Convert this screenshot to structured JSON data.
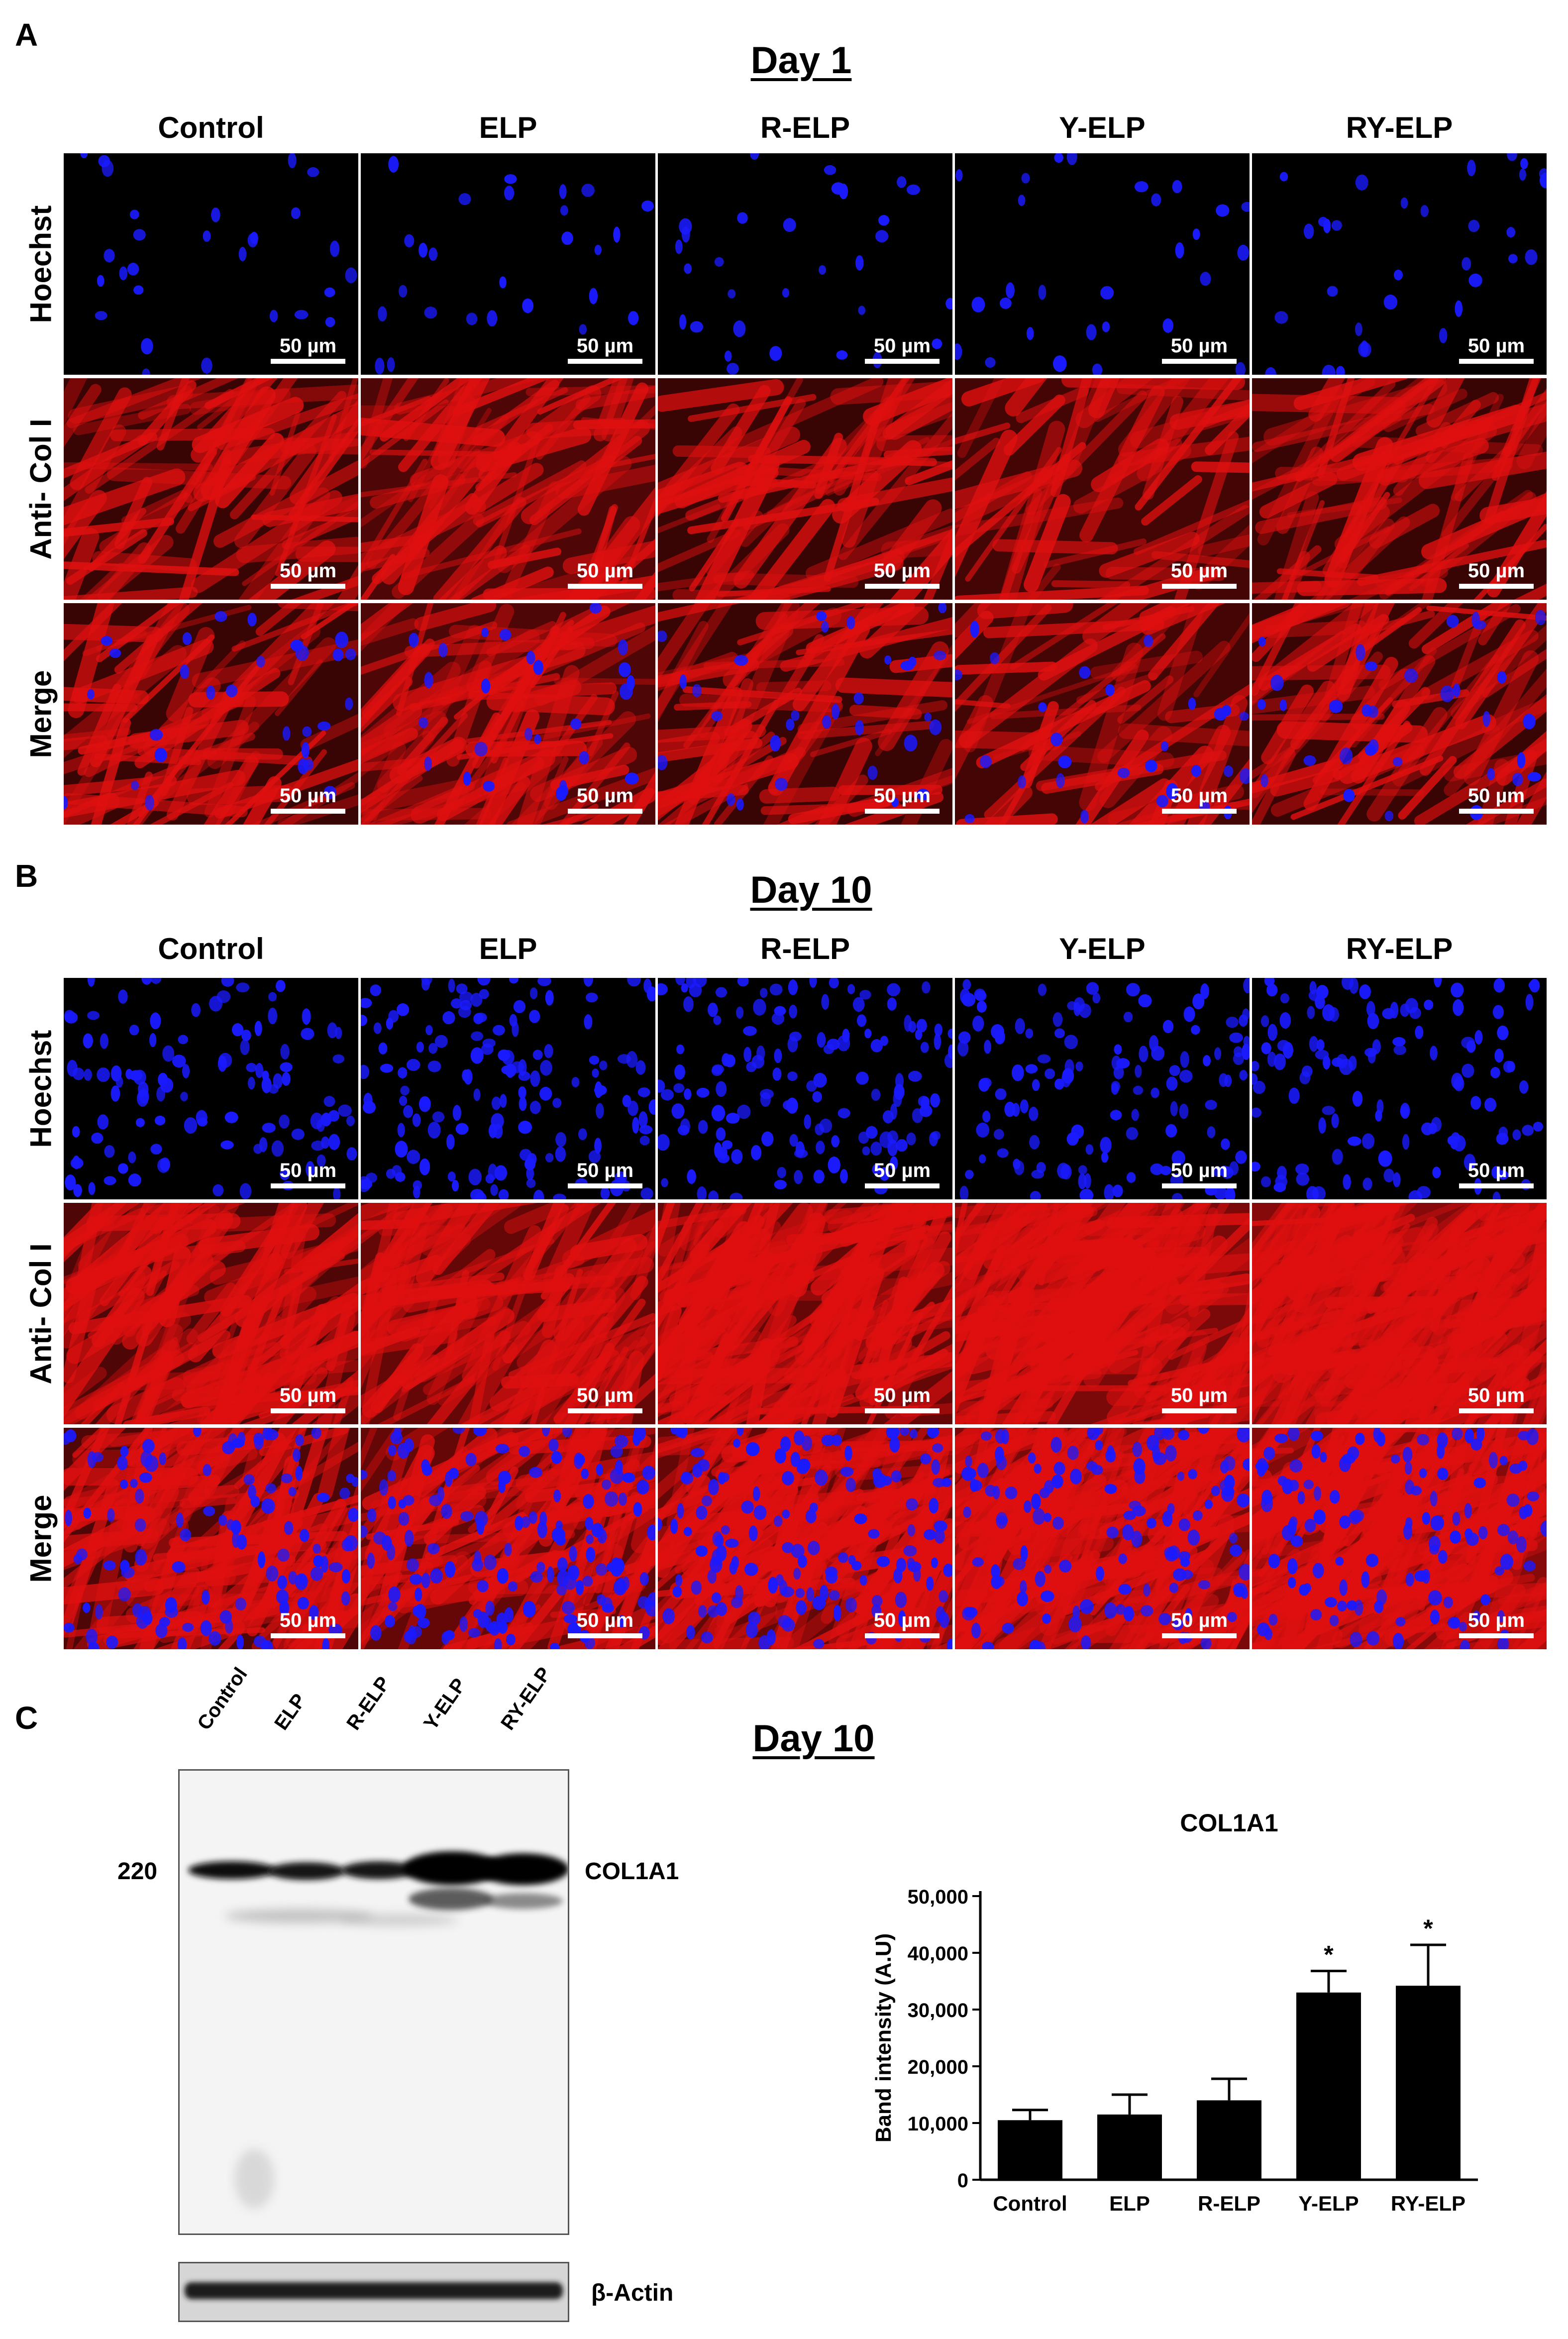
{
  "panels": {
    "A": {
      "letter": "A",
      "title": "Day 1"
    },
    "B": {
      "letter": "B",
      "title": "Day 10"
    },
    "C": {
      "letter": "C",
      "title": "Day 10"
    }
  },
  "columns": [
    "Control",
    "ELP",
    "R-ELP",
    "Y-ELP",
    "RY-ELP"
  ],
  "rows": [
    "Hoechst",
    "Anti- Col I",
    "Merge"
  ],
  "scale_bar_label": "50 µm",
  "colors": {
    "nuclei": "#1a1aff",
    "collagen": "#e01010",
    "background": "#000000"
  },
  "blot": {
    "lanes": [
      "Control",
      "ELP",
      "R-ELP",
      "Y-ELP",
      "RY-ELP"
    ],
    "marker": "220",
    "band_label": "COL1A1",
    "loading_label": "β-Actin"
  },
  "chart_data": {
    "type": "bar",
    "title": "COL1A1",
    "categories": [
      "Control",
      "ELP",
      "R-ELP",
      "Y-ELP",
      "RY-ELP"
    ],
    "values": [
      10500,
      11500,
      14000,
      33000,
      34200
    ],
    "errors": [
      1800,
      3500,
      3800,
      3800,
      7200
    ],
    "significance": [
      "",
      "",
      "",
      "*",
      "*"
    ],
    "ylabel": "Band intensity (A.U)",
    "ylim": [
      0,
      50000
    ],
    "yticks": [
      0,
      10000,
      20000,
      30000,
      40000,
      50000
    ],
    "ytick_labels": [
      "0",
      "10,000",
      "20,000",
      "30,000",
      "40,000",
      "50,000"
    ],
    "bar_color": "#000000"
  }
}
